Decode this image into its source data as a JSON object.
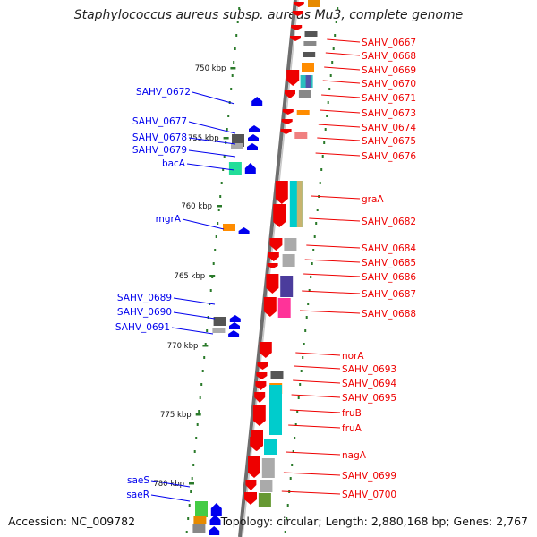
{
  "title": "Staphylococcus aureus subsp. aureus Mu3, complete genome",
  "footer": {
    "accession": "Accession: NC_009782",
    "topology": "Topology: circular; Length: 2,880,168 bp; Genes: 2,767"
  },
  "colors": {
    "backbone": "#8c8c8c",
    "ticks": "#2a7a2a",
    "forward_strand": "#0000ee",
    "reverse_strand": "#ee0000"
  },
  "scale_labels": [
    "750 kbp",
    "755 kbp",
    "760 kbp",
    "765 kbp",
    "770 kbp",
    "775 kbp",
    "780 kbp"
  ],
  "left_genes": [
    "SAHV_0672",
    "SAHV_0677",
    "SAHV_0678",
    "SAHV_0679",
    "bacA",
    "mgrA",
    "SAHV_0689",
    "SAHV_0690",
    "SAHV_0691",
    "saeS",
    "saeR"
  ],
  "right_genes": [
    "SAHV_0667",
    "SAHV_0668",
    "SAHV_0669",
    "SAHV_0670",
    "SAHV_0671",
    "SAHV_0673",
    "SAHV_0674",
    "SAHV_0675",
    "SAHV_0676",
    "graA",
    "SAHV_0682",
    "SAHV_0684",
    "SAHV_0685",
    "SAHV_0686",
    "SAHV_0687",
    "SAHV_0688",
    "norA",
    "SAHV_0693",
    "SAHV_0694",
    "SAHV_0695",
    "fruB",
    "fruA",
    "nagA",
    "SAHV_0699",
    "SAHV_0700"
  ]
}
